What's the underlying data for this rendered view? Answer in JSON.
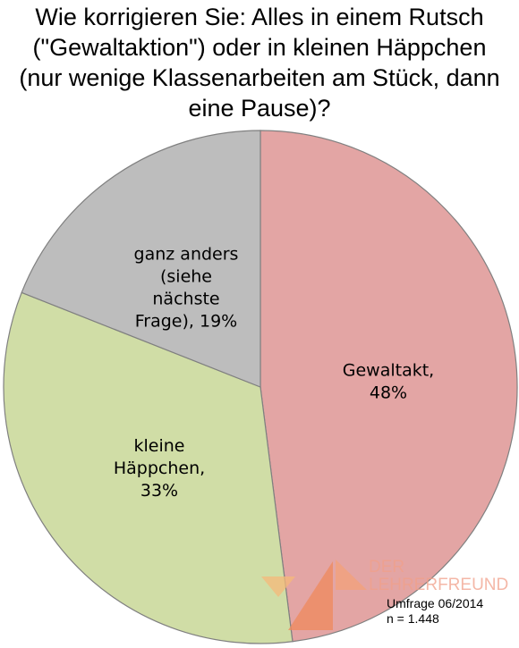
{
  "chart_data": {
    "type": "pie",
    "title_lines": [
      "Wie korrigieren Sie: Alles in einem Rutsch",
      "(\"Gewaltaktion\") oder in kleinen Häppchen",
      "(nur wenige Klassenarbeiten am Stück, dann",
      "eine Pause)?"
    ],
    "slices": [
      {
        "label_lines": [
          "Gewaltakt,",
          "48%"
        ],
        "value": 48,
        "color": "#e3a5a4"
      },
      {
        "label_lines": [
          "kleine",
          "Häppchen,",
          "33%"
        ],
        "value": 33,
        "color": "#d0dda6"
      },
      {
        "label_lines": [
          "ganz anders",
          "(siehe",
          "nächste",
          "Frage), 19%"
        ],
        "value": 19,
        "color": "#bdbdbd"
      }
    ],
    "start_angle_deg": 0,
    "direction": "clockwise",
    "edge_color": "#808080"
  },
  "watermark": {
    "line1": "DER",
    "line2": "LEHRERFREUND"
  },
  "footnote": {
    "line1": "Umfrage 06/2014",
    "line2": "n = 1.448"
  }
}
